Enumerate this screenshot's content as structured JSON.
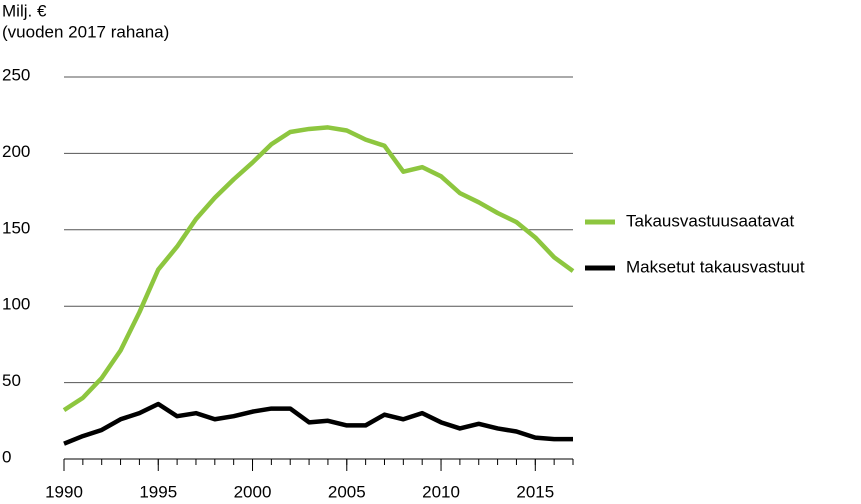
{
  "chart_data": {
    "type": "line",
    "y_label": [
      "Milj. €",
      "(vuoden 2017 rahana)"
    ],
    "x": [
      1990,
      1991,
      1992,
      1993,
      1994,
      1995,
      1996,
      1997,
      1998,
      1999,
      2000,
      2001,
      2002,
      2003,
      2004,
      2005,
      2006,
      2007,
      2008,
      2009,
      2010,
      2011,
      2012,
      2013,
      2014,
      2015,
      2016,
      2017
    ],
    "series": [
      {
        "name": "Takausvastuusaatavat",
        "color": "#8dc63f",
        "values": [
          32,
          40,
          53,
          71,
          96,
          124,
          139,
          157,
          171,
          183,
          194,
          206,
          214,
          216,
          217,
          215,
          209,
          205,
          188,
          191,
          185,
          174,
          168,
          161,
          155,
          145,
          132,
          123
        ]
      },
      {
        "name": "Maksetut takausvastuut",
        "color": "#000000",
        "values": [
          10,
          15,
          19,
          26,
          30,
          36,
          28,
          30,
          26,
          28,
          31,
          33,
          33,
          24,
          25,
          22,
          22,
          29,
          26,
          30,
          24,
          20,
          23,
          20,
          18,
          14,
          13,
          13
        ]
      }
    ],
    "xlim": [
      1990,
      2017
    ],
    "xticks": [
      1990,
      1995,
      2000,
      2005,
      2010,
      2015
    ],
    "ylim": [
      0,
      250
    ],
    "yticks": [
      0,
      50,
      100,
      150,
      200,
      250
    ],
    "grid": true,
    "legend": "right"
  }
}
